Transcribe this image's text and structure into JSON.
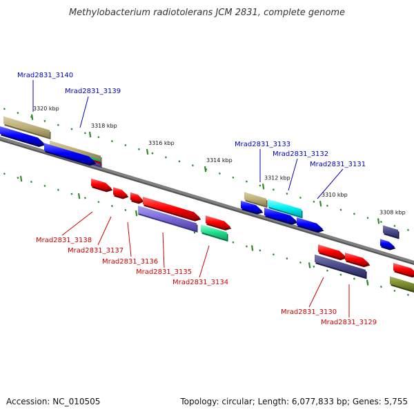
{
  "title": "Methylobacterium radiotolerans JCM 2831, complete genome",
  "footer": {
    "accession": "Accession: NC_010505",
    "summary": "Topology: circular; Length: 6,077,833 bp; Genes: 5,755"
  },
  "colors": {
    "forward_label": "#0000c0",
    "reverse_label": "#d00000",
    "backbone": "#808080",
    "tick": "#2a8a2a"
  },
  "scale_ticks": [
    {
      "label": "3320 kbp"
    },
    {
      "label": "3318 kbp"
    },
    {
      "label": "3316 kbp"
    },
    {
      "label": "3314 kbp"
    },
    {
      "label": "3312 kbp"
    },
    {
      "label": "3310 kbp"
    },
    {
      "label": "3308 kbp"
    }
  ],
  "gene_labels": [
    {
      "id": "Mrad2831_3140",
      "strand": "forward"
    },
    {
      "id": "Mrad2831_3139",
      "strand": "forward"
    },
    {
      "id": "Mrad2831_3133",
      "strand": "forward"
    },
    {
      "id": "Mrad2831_3132",
      "strand": "forward"
    },
    {
      "id": "Mrad2831_3131",
      "strand": "forward"
    },
    {
      "id": "Mrad2831_3138",
      "strand": "reverse"
    },
    {
      "id": "Mrad2831_3137",
      "strand": "reverse"
    },
    {
      "id": "Mrad2831_3136",
      "strand": "reverse"
    },
    {
      "id": "Mrad2831_3135",
      "strand": "reverse"
    },
    {
      "id": "Mrad2831_3134",
      "strand": "reverse"
    },
    {
      "id": "Mrad2831_3130",
      "strand": "reverse"
    },
    {
      "id": "Mrad2831_3129",
      "strand": "reverse"
    }
  ]
}
